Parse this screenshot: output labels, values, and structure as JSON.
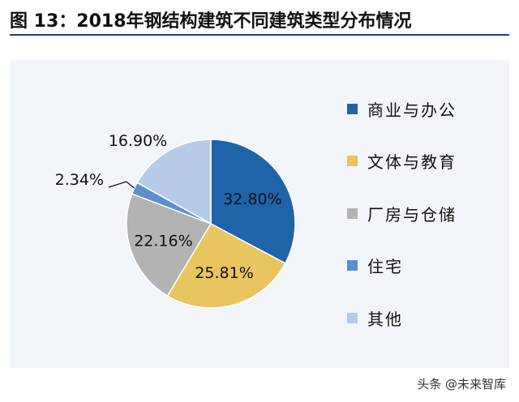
{
  "header": {
    "title": "图 13：2018年钢结构建筑不同建筑类型分布情况"
  },
  "chart_data": {
    "type": "pie",
    "title": "2018年钢结构建筑不同建筑类型分布情况",
    "legend_position": "right",
    "start": "12 o'clock, clockwise",
    "slices": [
      {
        "label": "商业与办公",
        "value": 32.8,
        "display": "32.80%",
        "color": "#1f63a8"
      },
      {
        "label": "文体与教育",
        "value": 25.81,
        "display": "25.81%",
        "color": "#e8c55e"
      },
      {
        "label": "厂房与仓储",
        "value": 22.16,
        "display": "22.16%",
        "color": "#b3b3b3"
      },
      {
        "label": "住宅",
        "value": 2.34,
        "display": "2.34%",
        "color": "#5d8fd0"
      },
      {
        "label": "其他",
        "value": 16.9,
        "display": "16.90%",
        "color": "#b5cbe7"
      }
    ]
  },
  "watermark": {
    "text": "头条 @未来智库"
  }
}
